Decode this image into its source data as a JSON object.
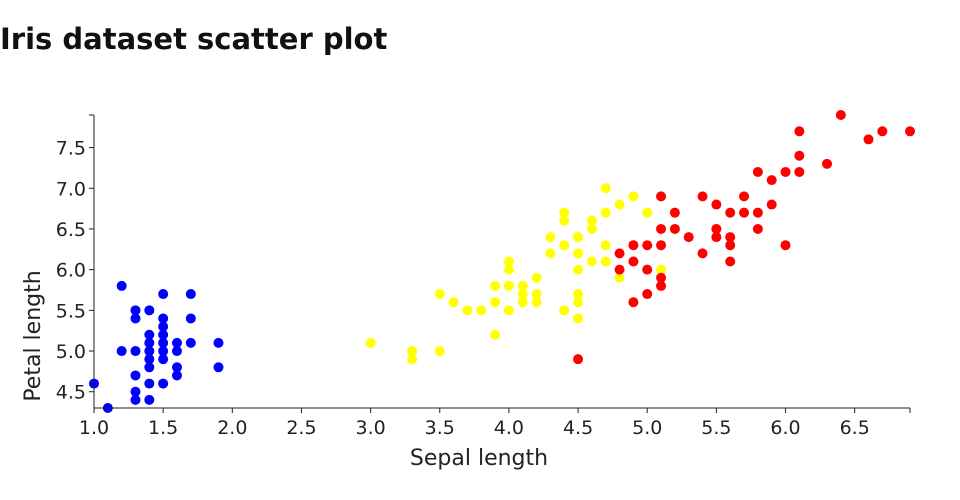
{
  "chart_data": {
    "type": "scatter",
    "title": "Iris dataset scatter plot",
    "xlabel": "Sepal length",
    "ylabel": "Petal length",
    "xlim": [
      1.0,
      6.9
    ],
    "ylim": [
      4.3,
      7.9
    ],
    "xticks": [
      "1.0",
      "1.5",
      "2.0",
      "2.5",
      "3.0",
      "3.5",
      "4.0",
      "4.5",
      "5.0",
      "5.5",
      "6.0",
      "6.5"
    ],
    "yticks": [
      "4.5",
      "5.0",
      "5.5",
      "6.0",
      "6.5",
      "7.0",
      "7.5"
    ],
    "grid": false,
    "series": [
      {
        "color": "#0000ff",
        "points": [
          [
            1.0,
            4.6
          ],
          [
            1.1,
            4.3
          ],
          [
            1.2,
            5.8
          ],
          [
            1.2,
            5.0
          ],
          [
            1.3,
            5.5
          ],
          [
            1.3,
            5.4
          ],
          [
            1.3,
            5.0
          ],
          [
            1.3,
            4.7
          ],
          [
            1.3,
            4.5
          ],
          [
            1.3,
            4.4
          ],
          [
            1.4,
            5.5
          ],
          [
            1.4,
            5.2
          ],
          [
            1.4,
            5.1
          ],
          [
            1.4,
            5.0
          ],
          [
            1.4,
            4.9
          ],
          [
            1.4,
            4.8
          ],
          [
            1.4,
            4.6
          ],
          [
            1.4,
            4.4
          ],
          [
            1.5,
            5.7
          ],
          [
            1.5,
            5.4
          ],
          [
            1.5,
            5.3
          ],
          [
            1.5,
            5.2
          ],
          [
            1.5,
            5.1
          ],
          [
            1.5,
            5.0
          ],
          [
            1.5,
            4.9
          ],
          [
            1.5,
            4.6
          ],
          [
            1.6,
            5.1
          ],
          [
            1.6,
            5.0
          ],
          [
            1.6,
            4.8
          ],
          [
            1.6,
            4.7
          ],
          [
            1.7,
            5.7
          ],
          [
            1.7,
            5.4
          ],
          [
            1.7,
            5.1
          ],
          [
            1.9,
            5.1
          ],
          [
            1.9,
            4.8
          ]
        ]
      },
      {
        "color": "#ffff00",
        "points": [
          [
            3.0,
            5.1
          ],
          [
            3.3,
            5.0
          ],
          [
            3.3,
            4.9
          ],
          [
            3.5,
            5.7
          ],
          [
            3.5,
            5.0
          ],
          [
            3.6,
            5.6
          ],
          [
            3.7,
            5.5
          ],
          [
            3.8,
            5.5
          ],
          [
            3.9,
            5.8
          ],
          [
            3.9,
            5.6
          ],
          [
            3.9,
            5.2
          ],
          [
            4.0,
            6.1
          ],
          [
            4.0,
            6.0
          ],
          [
            4.0,
            5.8
          ],
          [
            4.0,
            5.5
          ],
          [
            4.1,
            5.8
          ],
          [
            4.1,
            5.7
          ],
          [
            4.1,
            5.6
          ],
          [
            4.2,
            5.9
          ],
          [
            4.2,
            5.7
          ],
          [
            4.2,
            5.6
          ],
          [
            4.3,
            6.4
          ],
          [
            4.3,
            6.2
          ],
          [
            4.4,
            6.7
          ],
          [
            4.4,
            6.6
          ],
          [
            4.4,
            6.3
          ],
          [
            4.4,
            5.5
          ],
          [
            4.5,
            6.4
          ],
          [
            4.5,
            6.2
          ],
          [
            4.5,
            6.0
          ],
          [
            4.5,
            5.7
          ],
          [
            4.5,
            5.6
          ],
          [
            4.5,
            5.4
          ],
          [
            4.6,
            6.6
          ],
          [
            4.6,
            6.5
          ],
          [
            4.6,
            6.1
          ],
          [
            4.7,
            7.0
          ],
          [
            4.7,
            6.7
          ],
          [
            4.7,
            6.3
          ],
          [
            4.7,
            6.1
          ],
          [
            4.8,
            6.8
          ],
          [
            4.8,
            5.9
          ],
          [
            4.9,
            6.9
          ],
          [
            5.0,
            6.7
          ],
          [
            5.1,
            6.0
          ]
        ]
      },
      {
        "color": "#ff0000",
        "points": [
          [
            4.5,
            4.9
          ],
          [
            4.8,
            6.2
          ],
          [
            4.8,
            6.0
          ],
          [
            4.9,
            6.3
          ],
          [
            4.9,
            6.1
          ],
          [
            4.9,
            5.6
          ],
          [
            5.0,
            6.3
          ],
          [
            5.0,
            6.0
          ],
          [
            5.0,
            5.7
          ],
          [
            5.1,
            6.9
          ],
          [
            5.1,
            6.5
          ],
          [
            5.1,
            6.3
          ],
          [
            5.1,
            5.9
          ],
          [
            5.1,
            5.8
          ],
          [
            5.2,
            6.7
          ],
          [
            5.2,
            6.5
          ],
          [
            5.3,
            6.4
          ],
          [
            5.4,
            6.9
          ],
          [
            5.4,
            6.2
          ],
          [
            5.5,
            6.8
          ],
          [
            5.5,
            6.5
          ],
          [
            5.5,
            6.4
          ],
          [
            5.6,
            6.7
          ],
          [
            5.6,
            6.4
          ],
          [
            5.6,
            6.3
          ],
          [
            5.6,
            6.1
          ],
          [
            5.7,
            6.9
          ],
          [
            5.7,
            6.7
          ],
          [
            5.8,
            7.2
          ],
          [
            5.8,
            6.7
          ],
          [
            5.8,
            6.5
          ],
          [
            5.9,
            7.1
          ],
          [
            5.9,
            6.8
          ],
          [
            6.0,
            7.2
          ],
          [
            6.0,
            6.3
          ],
          [
            6.1,
            7.7
          ],
          [
            6.1,
            7.4
          ],
          [
            6.1,
            7.2
          ],
          [
            6.3,
            7.3
          ],
          [
            6.4,
            7.9
          ],
          [
            6.6,
            7.6
          ],
          [
            6.7,
            7.7
          ],
          [
            6.9,
            7.7
          ]
        ]
      }
    ]
  }
}
